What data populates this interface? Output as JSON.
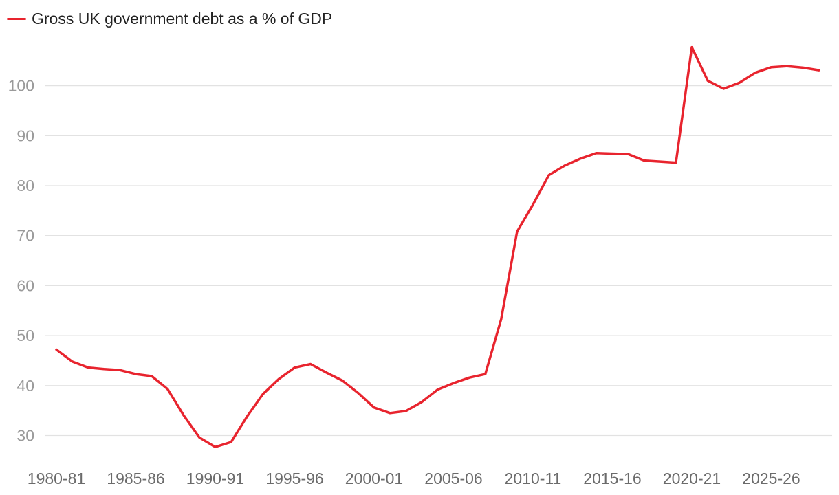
{
  "chart_data": {
    "type": "line",
    "title": "",
    "xlabel": "",
    "ylabel": "",
    "legend_position": "top-left",
    "grid": "horizontal",
    "ylim": [
      25,
      110
    ],
    "y_ticks": [
      30,
      40,
      50,
      60,
      70,
      80,
      90,
      100
    ],
    "x_tick_labels": [
      "1980-81",
      "1985-86",
      "1990-91",
      "1995-96",
      "2000-01",
      "2005-06",
      "2010-11",
      "2015-16",
      "2020-21",
      "2025-26"
    ],
    "x": [
      "1980-81",
      "1981-82",
      "1982-83",
      "1983-84",
      "1984-85",
      "1985-86",
      "1986-87",
      "1987-88",
      "1988-89",
      "1989-90",
      "1990-91",
      "1991-92",
      "1992-93",
      "1993-94",
      "1994-95",
      "1995-96",
      "1996-97",
      "1997-98",
      "1998-99",
      "1999-00",
      "2000-01",
      "2001-02",
      "2002-03",
      "2003-04",
      "2004-05",
      "2005-06",
      "2006-07",
      "2007-08",
      "2008-09",
      "2009-10",
      "2010-11",
      "2011-12",
      "2012-13",
      "2013-14",
      "2014-15",
      "2015-16",
      "2016-17",
      "2017-18",
      "2018-19",
      "2019-20",
      "2020-21",
      "2021-22",
      "2022-23",
      "2023-24",
      "2024-25",
      "2025-26",
      "2026-27",
      "2027-28",
      "2028-29"
    ],
    "series": [
      {
        "name": "Gross UK government debt as a % of GDP",
        "color": "#e8242e",
        "values": [
          47.2,
          44.8,
          43.6,
          43.3,
          43.1,
          42.3,
          41.9,
          39.3,
          34.1,
          29.6,
          27.7,
          28.7,
          33.8,
          38.3,
          41.3,
          43.6,
          44.3,
          42.6,
          41.0,
          38.5,
          35.6,
          34.5,
          34.9,
          36.7,
          39.2,
          40.5,
          41.6,
          42.3,
          53.3,
          70.8,
          76.2,
          82.1,
          84.0,
          85.4,
          86.5,
          86.4,
          86.3,
          85.0,
          84.8,
          84.6,
          107.7,
          101.0,
          99.4,
          100.6,
          102.6,
          103.7,
          103.9,
          103.6,
          103.1
        ]
      }
    ]
  }
}
